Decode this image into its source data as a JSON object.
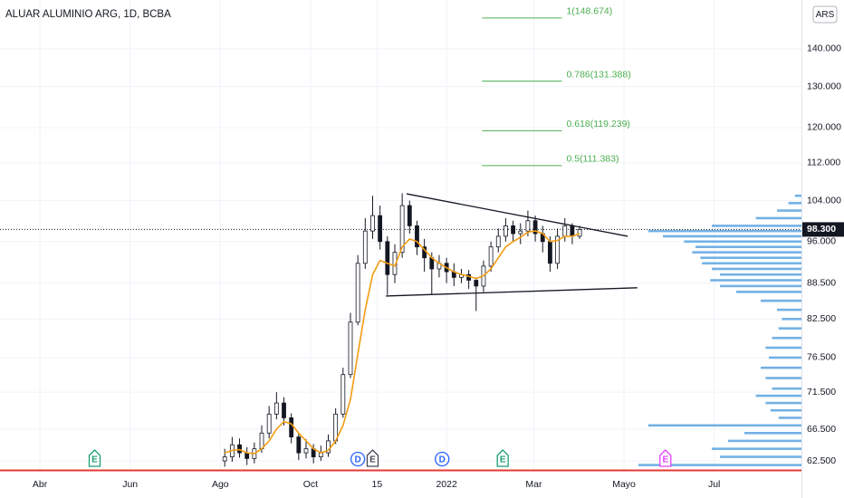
{
  "chart_data": {
    "type": "candlestick",
    "title": "ALUAR ALUMINIO ARG, 1D, BCBA",
    "currency": "ARS",
    "x": [
      125,
      130,
      135,
      140,
      145,
      150,
      155,
      160,
      165,
      170,
      175,
      180,
      185,
      190,
      195,
      200,
      205,
      210,
      215,
      220,
      225,
      230,
      235,
      240,
      245,
      250,
      255,
      260,
      265,
      270,
      275,
      280,
      285,
      290,
      295,
      300,
      305,
      310,
      315,
      320,
      325,
      330,
      335,
      340,
      345,
      350,
      355,
      360,
      365
    ],
    "opens": [
      62.5,
      63.0,
      64.5,
      63.5,
      62.8,
      64.0,
      66.0,
      68.5,
      70.0,
      68.0,
      65.5,
      63.5,
      64.0,
      63.0,
      63.5,
      65.0,
      68.5,
      74.0,
      82.0,
      92.0,
      98.0,
      101.0,
      96.0,
      90.0,
      94.0,
      103.0,
      99.0,
      95.0,
      93.0,
      91.0,
      92.0,
      90.5,
      89.5,
      90.0,
      89.0,
      88.0,
      91.5,
      95.0,
      97.0,
      99.0,
      97.5,
      98.0,
      100.0,
      97.5,
      96.0,
      92.0,
      97.0,
      99.0,
      97.0
    ],
    "highs": [
      64.0,
      65.5,
      65.3,
      64.2,
      64.8,
      67.0,
      69.6,
      71.5,
      70.8,
      68.6,
      66.0,
      65.2,
      64.6,
      64.4,
      65.8,
      69.3,
      75.0,
      83.5,
      93.5,
      100.5,
      105.0,
      103.0,
      97.0,
      95.5,
      105.5,
      104.0,
      100.0,
      96.5,
      94.0,
      93.5,
      93.0,
      92.0,
      91.0,
      90.8,
      89.5,
      92.5,
      96.0,
      98.5,
      100.5,
      100.0,
      99.5,
      102.0,
      101.0,
      99.0,
      97.0,
      98.5,
      100.5,
      99.5,
      99.0
    ],
    "lows": [
      61.8,
      62.4,
      62.9,
      62.0,
      62.2,
      63.5,
      65.3,
      67.8,
      67.0,
      64.7,
      62.6,
      62.8,
      62.2,
      62.5,
      63.0,
      64.6,
      68.0,
      73.5,
      81.5,
      91.0,
      96.5,
      94.5,
      86.5,
      88.5,
      93.0,
      97.5,
      93.5,
      90.5,
      86.5,
      89.5,
      88.5,
      88.0,
      88.5,
      87.5,
      83.8,
      87.0,
      90.5,
      94.0,
      96.0,
      96.0,
      95.5,
      97.0,
      96.0,
      94.0,
      90.5,
      91.0,
      96.0,
      95.5,
      96.5
    ],
    "closes": [
      63.0,
      64.5,
      63.5,
      62.8,
      64.0,
      66.0,
      68.5,
      70.0,
      68.0,
      65.5,
      63.5,
      64.0,
      63.0,
      63.5,
      65.0,
      68.5,
      74.0,
      82.0,
      92.0,
      98.0,
      101.0,
      96.0,
      90.0,
      94.0,
      103.0,
      99.0,
      95.0,
      93.0,
      91.0,
      92.0,
      90.5,
      89.5,
      90.0,
      89.0,
      88.0,
      91.5,
      95.0,
      97.0,
      99.0,
      97.5,
      98.0,
      100.0,
      97.5,
      96.0,
      92.0,
      97.0,
      99.0,
      97.0,
      98.3
    ],
    "up_color": "#ffffff",
    "down_color": "#131722",
    "moving_average": {
      "color": "#f39c12",
      "values": [
        63.5,
        63.8,
        63.9,
        63.5,
        63.4,
        64.0,
        65.0,
        66.5,
        67.5,
        67.2,
        66.0,
        65.0,
        64.0,
        63.5,
        63.8,
        65.0,
        67.0,
        70.5,
        77.0,
        84.0,
        90.0,
        92.5,
        92.0,
        91.5,
        95.0,
        96.5,
        96.0,
        94.5,
        93.0,
        92.0,
        91.2,
        90.5,
        90.0,
        89.7,
        89.3,
        89.8,
        91.0,
        93.0,
        95.0,
        96.0,
        96.8,
        97.8,
        98.0,
        97.5,
        96.0,
        96.2,
        97.0,
        97.0,
        97.5
      ]
    },
    "last_price": {
      "value": 98.3,
      "label": "98.300"
    },
    "fibonacci": {
      "color": "#4caf50",
      "x": [
        299,
        353
      ],
      "levels": [
        {
          "value": 148.674,
          "label": "1(148.674)"
        },
        {
          "value": 131.388,
          "label": "0.786(131.388)"
        },
        {
          "value": 119.239,
          "label": "0.618(119.239)"
        },
        {
          "value": 111.383,
          "label": "0.5(111.383)"
        }
      ]
    },
    "trendlines": [
      {
        "x": [
          248,
          397.5
        ],
        "y": [
          105.4,
          97.0
        ]
      },
      {
        "x": [
          234,
          404
        ],
        "y": [
          86.3,
          87.7
        ]
      }
    ],
    "volume_profile": {
      "color": "#5ba3e0",
      "prices": [
        105,
        103.5,
        102,
        100.5,
        99,
        98,
        97,
        96,
        95,
        94,
        93,
        92,
        91,
        90,
        89,
        88,
        87,
        85.5,
        84,
        82.5,
        81,
        79.5,
        78,
        76.5,
        75,
        73.5,
        72,
        71,
        70,
        69,
        68,
        67,
        66,
        65,
        64,
        63,
        62
      ],
      "values": [
        4,
        8,
        15,
        28,
        55,
        94,
        85,
        72,
        65,
        67,
        62,
        61,
        55,
        50,
        56,
        50,
        40,
        25,
        15,
        12,
        14,
        18,
        22,
        20,
        25,
        22,
        18,
        28,
        22,
        19,
        14,
        94,
        35,
        45,
        55,
        50,
        100
      ]
    },
    "events": [
      {
        "label": "E",
        "x": 37,
        "color": "#1a9e74"
      },
      {
        "label": "D",
        "x": 215,
        "color": "#2962ff"
      },
      {
        "label": "E",
        "x": 225,
        "color": "#434651"
      },
      {
        "label": "D",
        "x": 272,
        "color": "#2962ff"
      },
      {
        "label": "E",
        "x": 313,
        "color": "#1a9e74"
      },
      {
        "label": "E",
        "x": 423,
        "color": "#e040fb"
      }
    ],
    "xlim": [
      -27,
      515
    ],
    "xticks": [
      {
        "value": 0,
        "label": "Abr"
      },
      {
        "value": 61,
        "label": "Jun"
      },
      {
        "value": 122,
        "label": "Ago"
      },
      {
        "value": 183,
        "label": "Oct"
      },
      {
        "value": 228,
        "label": "15"
      },
      {
        "value": 275,
        "label": "2022"
      },
      {
        "value": 334,
        "label": "Mar"
      },
      {
        "value": 395,
        "label": "Mayo"
      },
      {
        "value": 456,
        "label": "Jul"
      }
    ],
    "ylim": [
      61.3,
      154
    ],
    "log_scale": true,
    "yticks": [
      {
        "value": 62.5,
        "label": "62.500"
      },
      {
        "value": 66.5,
        "label": "66.500"
      },
      {
        "value": 71.5,
        "label": "71.500"
      },
      {
        "value": 76.5,
        "label": "76.500"
      },
      {
        "value": 82.5,
        "label": "82.500"
      },
      {
        "value": 88.5,
        "label": "88.500"
      },
      {
        "value": 96,
        "label": "96.000"
      },
      {
        "value": 104,
        "label": "104.000"
      },
      {
        "value": 112,
        "label": "112.000"
      },
      {
        "value": 120,
        "label": "120.000"
      },
      {
        "value": 130,
        "label": "130.000"
      },
      {
        "value": 140,
        "label": "140.000"
      }
    ],
    "grid": true
  }
}
